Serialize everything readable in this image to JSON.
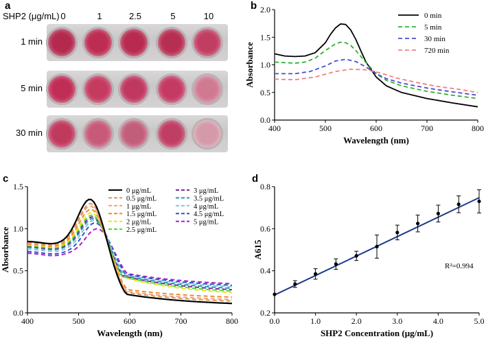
{
  "panels": {
    "a": "a",
    "b": "b",
    "c": "c",
    "d": "d"
  },
  "photo": {
    "header_label": "SHP2 (μg/mL)",
    "concentrations": [
      "0",
      "1",
      "2.5",
      "5",
      "10"
    ],
    "rows": [
      "1 min",
      "5 min",
      "30 min"
    ],
    "well_colors": [
      [
        "#b32a4e",
        "#bd2c52",
        "#b82a50",
        "#b72e53",
        "#c23d62"
      ],
      [
        "#c02d56",
        "#c53b60",
        "#c03760",
        "#c53a63",
        "#d07a92"
      ],
      [
        "#c03a5e",
        "#c65a78",
        "#c25d7a",
        "#bf3e63",
        "#d59aa9"
      ]
    ]
  },
  "chart_data": [
    {
      "panel": "b",
      "type": "line",
      "xlabel": "Wavelength (nm)",
      "ylabel": "Absorbance",
      "xlim": [
        400,
        800
      ],
      "ylim": [
        0.0,
        2.0
      ],
      "xticks": [
        400,
        500,
        600,
        700,
        800
      ],
      "yticks": [
        0.0,
        0.5,
        1.0,
        1.5,
        2.0
      ],
      "xtick_labels": [
        "400",
        "500",
        "600",
        "700",
        "800"
      ],
      "ytick_labels": [
        "0.0",
        "0.5",
        "1.0",
        "1.5",
        "2.0"
      ],
      "legend_position": "top-right",
      "series": [
        {
          "name": "0 min",
          "color": "#000000",
          "dash": false,
          "x": [
            400,
            420,
            440,
            460,
            480,
            500,
            510,
            520,
            530,
            540,
            550,
            560,
            570,
            580,
            600,
            620,
            650,
            700,
            750,
            800
          ],
          "y": [
            1.2,
            1.16,
            1.15,
            1.16,
            1.22,
            1.4,
            1.55,
            1.67,
            1.74,
            1.73,
            1.63,
            1.46,
            1.25,
            1.05,
            0.78,
            0.62,
            0.5,
            0.39,
            0.31,
            0.24
          ]
        },
        {
          "name": "5 min",
          "color": "#2fb02f",
          "dash": true,
          "x": [
            400,
            440,
            460,
            480,
            500,
            520,
            530,
            540,
            550,
            560,
            580,
            600,
            620,
            650,
            700,
            750,
            800
          ],
          "y": [
            1.05,
            1.03,
            1.05,
            1.12,
            1.26,
            1.38,
            1.41,
            1.4,
            1.35,
            1.26,
            1.04,
            0.84,
            0.72,
            0.62,
            0.52,
            0.45,
            0.39
          ]
        },
        {
          "name": "30 min",
          "color": "#4a4ad8",
          "dash": true,
          "x": [
            400,
            440,
            470,
            500,
            520,
            540,
            560,
            580,
            600,
            620,
            650,
            700,
            750,
            800
          ],
          "y": [
            0.84,
            0.84,
            0.88,
            0.98,
            1.07,
            1.1,
            1.06,
            0.96,
            0.84,
            0.75,
            0.67,
            0.58,
            0.51,
            0.45
          ]
        },
        {
          "name": "720 min",
          "color": "#f08080",
          "dash": true,
          "x": [
            400,
            440,
            480,
            520,
            550,
            580,
            610,
            640,
            680,
            720,
            760,
            800
          ],
          "y": [
            0.74,
            0.73,
            0.78,
            0.88,
            0.92,
            0.91,
            0.85,
            0.76,
            0.68,
            0.61,
            0.56,
            0.5
          ]
        }
      ]
    },
    {
      "panel": "c",
      "type": "line",
      "xlabel": "Wavelength (nm)",
      "ylabel": "Absorbance",
      "xlim": [
        400,
        800
      ],
      "ylim": [
        0.0,
        1.5
      ],
      "xticks": [
        400,
        500,
        600,
        700,
        800
      ],
      "yticks": [
        0.0,
        0.5,
        1.0,
        1.5
      ],
      "xtick_labels": [
        "400",
        "500",
        "600",
        "700",
        "800"
      ],
      "ytick_labels": [
        "0.0",
        "0.5",
        "1.0",
        "1.5"
      ],
      "legend_position": "top-right",
      "series": [
        {
          "name": "0 μg/mL",
          "color": "#000000",
          "dash": false,
          "peak": 1.35,
          "base": 0.85,
          "tail": 0.08,
          "peak_x": 522
        },
        {
          "name": "0.5 μg/mL",
          "color": "#d8975a",
          "dash": true,
          "peak": 1.3,
          "base": 0.84,
          "tail": 0.11,
          "peak_x": 523
        },
        {
          "name": "1 μg/mL",
          "color": "#f2a07a",
          "dash": true,
          "peak": 1.27,
          "base": 0.83,
          "tail": 0.13,
          "peak_x": 523
        },
        {
          "name": "1.5 μg/mL",
          "color": "#f08a2a",
          "dash": true,
          "peak": 1.23,
          "base": 0.82,
          "tail": 0.16,
          "peak_x": 524
        },
        {
          "name": "2 μg/mL",
          "color": "#e6e61a",
          "dash": true,
          "peak": 1.19,
          "base": 0.81,
          "tail": 0.19,
          "peak_x": 525
        },
        {
          "name": "2.5 μg/mL",
          "color": "#4cd93a",
          "dash": true,
          "peak": 1.16,
          "base": 0.8,
          "tail": 0.21,
          "peak_x": 526
        },
        {
          "name": "3 μg/mL",
          "color": "#7a2a9a",
          "dash": true,
          "peak": 1.14,
          "base": 0.79,
          "tail": 0.23,
          "peak_x": 527
        },
        {
          "name": "3.5 μg/mL",
          "color": "#2a9ab0",
          "dash": true,
          "peak": 1.12,
          "base": 0.78,
          "tail": 0.25,
          "peak_x": 528
        },
        {
          "name": "4 μg/mL",
          "color": "#7ac8d8",
          "dash": true,
          "peak": 1.1,
          "base": 0.76,
          "tail": 0.27,
          "peak_x": 530
        },
        {
          "name": "4.5 μg/mL",
          "color": "#2a55c8",
          "dash": true,
          "peak": 1.07,
          "base": 0.73,
          "tail": 0.29,
          "peak_x": 532
        },
        {
          "name": "5 μg/mL",
          "color": "#a020c8",
          "dash": true,
          "peak": 1.0,
          "base": 0.71,
          "tail": 0.31,
          "peak_x": 536
        }
      ]
    },
    {
      "panel": "d",
      "type": "scatter",
      "xlabel": "SHP2 Concentration (μg/mL)",
      "ylabel": "A615",
      "xlim": [
        0.0,
        5.0
      ],
      "ylim": [
        0.2,
        0.8
      ],
      "xticks": [
        0.0,
        1.0,
        2.0,
        3.0,
        4.0,
        5.0
      ],
      "yticks": [
        0.2,
        0.4,
        0.6,
        0.8
      ],
      "xtick_labels": [
        "0.0",
        "1.0",
        "2.0",
        "3.0",
        "4.0",
        "5.0"
      ],
      "ytick_labels": [
        "0.2",
        "0.4",
        "0.6",
        "0.8"
      ],
      "x": [
        0.0,
        0.5,
        1.0,
        1.5,
        2.0,
        2.5,
        3.0,
        3.5,
        4.0,
        4.5,
        5.0
      ],
      "y": [
        0.288,
        0.337,
        0.385,
        0.432,
        0.471,
        0.515,
        0.582,
        0.625,
        0.672,
        0.716,
        0.73
      ],
      "err": [
        0.0,
        0.016,
        0.025,
        0.025,
        0.022,
        0.055,
        0.035,
        0.04,
        0.04,
        0.04,
        0.055
      ],
      "fit": {
        "slope": 0.0925,
        "intercept": 0.285
      },
      "annotation": "R²=0.994"
    }
  ]
}
